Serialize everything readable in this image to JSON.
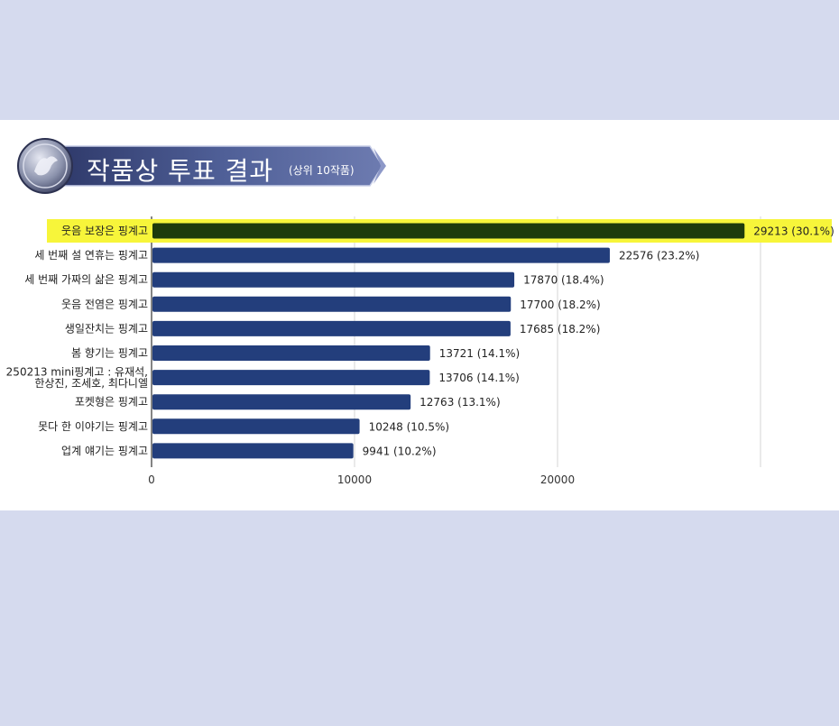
{
  "header": {
    "title": "작품상 투표 결과",
    "subtitle": "(상위 10작품)",
    "emblem_icon": "bird-emblem-icon"
  },
  "colors": {
    "page_bg": "#d5daee",
    "bar": "#233e7c",
    "highlight_bar": "#1e3b0c",
    "highlight_band": "#f7f53a",
    "ribbon": "#4c5c92"
  },
  "chart_data": {
    "type": "bar",
    "orientation": "horizontal",
    "title": "작품상 투표 결과",
    "subtitle": "(상위 10작품)",
    "xlabel": "",
    "ylabel": "",
    "xlim": [
      0,
      30000
    ],
    "xticks": [
      0,
      10000,
      20000
    ],
    "grid": true,
    "legend": "none",
    "highlight_index": 0,
    "categories": [
      [
        "웃음 보장은 핑계고"
      ],
      [
        "세 번째 설 연휴는 핑계고"
      ],
      [
        "세 번째 가짜의 삶은 핑계고"
      ],
      [
        "웃음 전염은 핑계고"
      ],
      [
        "생일잔치는 핑계고"
      ],
      [
        "봄 향기는 핑계고"
      ],
      [
        "250213 mini핑계고 : 유재석,",
        "한상진, 조세호, 최다니엘"
      ],
      [
        "포켓형은 핑계고"
      ],
      [
        "못다 한 이야기는 핑계고"
      ],
      [
        "업계 얘기는 핑계고"
      ]
    ],
    "values": [
      29213,
      22576,
      17870,
      17700,
      17685,
      13721,
      13706,
      12763,
      10248,
      9941
    ],
    "percents": [
      "30.1%",
      "23.2%",
      "18.4%",
      "18.2%",
      "18.2%",
      "14.1%",
      "14.1%",
      "13.1%",
      "10.5%",
      "10.2%"
    ],
    "value_labels": [
      "29213 (30.1%)",
      "22576 (23.2%)",
      "17870 (18.4%)",
      "17700 (18.2%)",
      "17685 (18.2%)",
      "13721 (14.1%)",
      "13706 (14.1%)",
      "12763 (13.1%)",
      "10248 (10.5%)",
      "9941 (10.2%)"
    ]
  }
}
